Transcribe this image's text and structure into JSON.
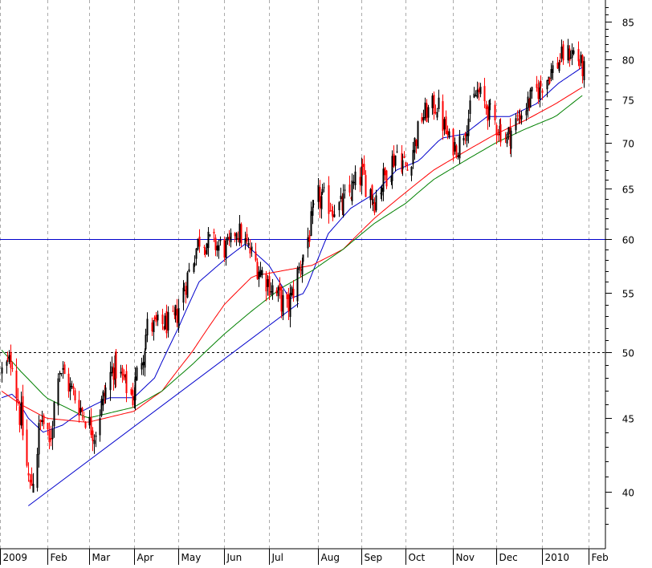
{
  "chart_data": {
    "type": "candlestick",
    "x_ticks": [
      "2009",
      "Feb",
      "Mar",
      "Apr",
      "May",
      "Jun",
      "Jul",
      "Aug",
      "Sep",
      "Oct",
      "Nov",
      "Dec",
      "2010",
      "Feb"
    ],
    "y_ticks": [
      40,
      45,
      50,
      55,
      60,
      65,
      70,
      75,
      80,
      85
    ],
    "y_scale": "log",
    "ylim": [
      36.5,
      88
    ],
    "grid": "dashed vertical monthly gridlines",
    "horizontal_lines": [
      {
        "value": 60,
        "style": "solid",
        "color": "#0000cc"
      },
      {
        "value": 50,
        "style": "dashed",
        "color": "#000000"
      }
    ],
    "trendline": {
      "color": "#0000cc",
      "from": {
        "date": "2009-01-20",
        "value": 39.1
      },
      "to": {
        "date": "2009-07-21",
        "value": 54.1
      }
    },
    "series": [
      {
        "style": "ohlc-bars",
        "colors": {
          "up": "#000000",
          "down": "#ff0000"
        },
        "segments": [
          {
            "start": "2009-01-02",
            "end": "2009-01-09",
            "from": 48.5,
            "to": 49.5,
            "range": 2.0
          },
          {
            "start": "2009-01-09",
            "end": "2009-01-21",
            "from": 49.5,
            "to": 40.0,
            "range": 3.0
          },
          {
            "start": "2009-01-21",
            "end": "2009-01-29",
            "from": 40.0,
            "to": 45.0,
            "range": 3.0
          },
          {
            "start": "2009-01-29",
            "end": "2009-02-03",
            "from": 45.0,
            "to": 43.0,
            "range": 2.0
          },
          {
            "start": "2009-02-03",
            "end": "2009-02-09",
            "from": 43.0,
            "to": 49.0,
            "range": 2.5
          },
          {
            "start": "2009-02-09",
            "end": "2009-02-25",
            "from": 49.0,
            "to": 45.5,
            "range": 2.0
          },
          {
            "start": "2009-02-25",
            "end": "2009-03-05",
            "from": 45.5,
            "to": 44.0,
            "range": 2.0
          },
          {
            "start": "2009-03-05",
            "end": "2009-03-18",
            "from": 44.0,
            "to": 49.0,
            "range": 2.5
          },
          {
            "start": "2009-03-18",
            "end": "2009-03-31",
            "from": 49.0,
            "to": 46.5,
            "range": 2.0
          },
          {
            "start": "2009-03-31",
            "end": "2009-04-10",
            "from": 46.5,
            "to": 52.0,
            "range": 2.5
          },
          {
            "start": "2009-04-10",
            "end": "2009-04-28",
            "from": 52.0,
            "to": 52.5,
            "range": 2.0
          },
          {
            "start": "2009-04-28",
            "end": "2009-05-15",
            "from": 52.5,
            "to": 60.0,
            "range": 2.5
          },
          {
            "start": "2009-05-15",
            "end": "2009-06-03",
            "from": 60.0,
            "to": 59.0,
            "range": 2.5
          },
          {
            "start": "2009-06-03",
            "end": "2009-06-09",
            "from": 59.0,
            "to": 61.0,
            "range": 2.0
          },
          {
            "start": "2009-06-09",
            "end": "2009-06-25",
            "from": 61.0,
            "to": 57.0,
            "range": 2.5
          },
          {
            "start": "2009-06-25",
            "end": "2009-07-13",
            "from": 57.0,
            "to": 53.5,
            "range": 2.5
          },
          {
            "start": "2009-07-13",
            "end": "2009-07-24",
            "from": 53.5,
            "to": 58.5,
            "range": 2.5
          },
          {
            "start": "2009-07-24",
            "end": "2009-08-03",
            "from": 58.5,
            "to": 64.0,
            "range": 3.0
          },
          {
            "start": "2009-08-03",
            "end": "2009-08-18",
            "from": 64.0,
            "to": 63.0,
            "range": 3.0
          },
          {
            "start": "2009-08-18",
            "end": "2009-09-01",
            "from": 63.0,
            "to": 66.5,
            "range": 3.0
          },
          {
            "start": "2009-09-01",
            "end": "2009-09-10",
            "from": 66.5,
            "to": 64.0,
            "range": 3.0
          },
          {
            "start": "2009-09-10",
            "end": "2009-09-25",
            "from": 64.0,
            "to": 69.0,
            "range": 3.0
          },
          {
            "start": "2009-09-25",
            "end": "2009-10-02",
            "from": 69.0,
            "to": 67.0,
            "range": 3.0
          },
          {
            "start": "2009-10-02",
            "end": "2009-10-12",
            "from": 67.0,
            "to": 73.0,
            "range": 3.0
          },
          {
            "start": "2009-10-12",
            "end": "2009-10-22",
            "from": 73.0,
            "to": 74.5,
            "range": 3.0
          },
          {
            "start": "2009-10-22",
            "end": "2009-10-30",
            "from": 74.5,
            "to": 70.0,
            "range": 3.0
          },
          {
            "start": "2009-10-30",
            "end": "2009-11-05",
            "from": 70.0,
            "to": 69.5,
            "range": 2.5
          },
          {
            "start": "2009-11-05",
            "end": "2009-11-18",
            "from": 69.5,
            "to": 76.0,
            "range": 3.0
          },
          {
            "start": "2009-11-18",
            "end": "2009-12-01",
            "from": 76.0,
            "to": 72.0,
            "range": 3.0
          },
          {
            "start": "2009-12-01",
            "end": "2009-12-08",
            "from": 72.0,
            "to": 70.5,
            "range": 3.0
          },
          {
            "start": "2009-12-08",
            "end": "2009-12-18",
            "from": 70.5,
            "to": 73.5,
            "range": 3.0
          },
          {
            "start": "2009-12-18",
            "end": "2010-01-05",
            "from": 73.5,
            "to": 78.0,
            "range": 3.0
          },
          {
            "start": "2010-01-05",
            "end": "2010-01-15",
            "from": 78.0,
            "to": 80.5,
            "range": 3.0
          },
          {
            "start": "2010-01-15",
            "end": "2010-01-22",
            "from": 80.5,
            "to": 81.0,
            "range": 3.0
          },
          {
            "start": "2010-01-22",
            "end": "2010-01-29",
            "from": 81.0,
            "to": 78.5,
            "range": 3.0
          }
        ]
      },
      {
        "style": "line",
        "color": "#0000cc",
        "points": [
          [
            "2009-01-02",
            46.5
          ],
          [
            "2009-01-10",
            46.8
          ],
          [
            "2009-01-20",
            45.0
          ],
          [
            "2009-01-30",
            44.0
          ],
          [
            "2009-02-12",
            44.5
          ],
          [
            "2009-02-25",
            45.5
          ],
          [
            "2009-03-15",
            46.5
          ],
          [
            "2009-04-01",
            46.5
          ],
          [
            "2009-04-15",
            48.0
          ],
          [
            "2009-05-01",
            52.0
          ],
          [
            "2009-05-15",
            56.0
          ],
          [
            "2009-06-01",
            58.0
          ],
          [
            "2009-06-15",
            59.5
          ],
          [
            "2009-07-01",
            57.5
          ],
          [
            "2009-07-15",
            54.5
          ],
          [
            "2009-07-25",
            55.0
          ],
          [
            "2009-08-10",
            60.5
          ],
          [
            "2009-08-25",
            63.0
          ],
          [
            "2009-09-10",
            64.5
          ],
          [
            "2009-09-25",
            67.0
          ],
          [
            "2009-10-10",
            68.0
          ],
          [
            "2009-10-25",
            70.5
          ],
          [
            "2009-11-10",
            71.0
          ],
          [
            "2009-11-25",
            73.0
          ],
          [
            "2009-12-10",
            73.0
          ],
          [
            "2009-12-28",
            74.5
          ],
          [
            "2010-01-12",
            77.0
          ],
          [
            "2010-01-28",
            79.0
          ]
        ]
      },
      {
        "style": "line",
        "color": "#ff0000",
        "points": [
          [
            "2009-01-02",
            47.0
          ],
          [
            "2009-01-15",
            46.0
          ],
          [
            "2009-02-01",
            45.0
          ],
          [
            "2009-03-01",
            44.7
          ],
          [
            "2009-04-01",
            45.5
          ],
          [
            "2009-04-20",
            47.0
          ],
          [
            "2009-05-10",
            50.0
          ],
          [
            "2009-06-01",
            54.0
          ],
          [
            "2009-06-20",
            56.5
          ],
          [
            "2009-07-10",
            57.0
          ],
          [
            "2009-07-30",
            57.5
          ],
          [
            "2009-08-20",
            59.0
          ],
          [
            "2009-09-10",
            62.0
          ],
          [
            "2009-09-30",
            64.5
          ],
          [
            "2009-10-20",
            67.0
          ],
          [
            "2009-11-10",
            69.0
          ],
          [
            "2009-12-01",
            71.0
          ],
          [
            "2009-12-20",
            72.5
          ],
          [
            "2010-01-10",
            74.5
          ],
          [
            "2010-01-28",
            76.5
          ]
        ]
      },
      {
        "style": "line",
        "color": "#008000",
        "points": [
          [
            "2009-01-02",
            50.2
          ],
          [
            "2009-01-15",
            48.5
          ],
          [
            "2009-02-01",
            46.5
          ],
          [
            "2009-03-01",
            45.0
          ],
          [
            "2009-04-01",
            45.8
          ],
          [
            "2009-04-20",
            47.0
          ],
          [
            "2009-05-10",
            49.0
          ],
          [
            "2009-06-01",
            51.5
          ],
          [
            "2009-06-20",
            53.5
          ],
          [
            "2009-07-10",
            55.5
          ],
          [
            "2009-07-30",
            57.0
          ],
          [
            "2009-08-20",
            59.0
          ],
          [
            "2009-09-10",
            61.5
          ],
          [
            "2009-10-01",
            63.5
          ],
          [
            "2009-10-20",
            66.0
          ],
          [
            "2009-11-10",
            68.0
          ],
          [
            "2009-12-01",
            70.0
          ],
          [
            "2009-12-20",
            71.5
          ],
          [
            "2010-01-10",
            73.0
          ],
          [
            "2010-01-28",
            75.5
          ]
        ]
      }
    ]
  }
}
